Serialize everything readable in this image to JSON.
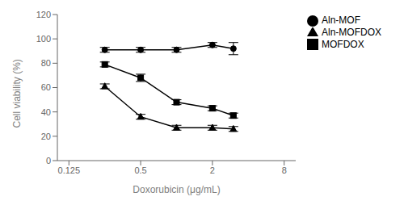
{
  "chart_data": {
    "type": "line",
    "x": [
      0.25,
      0.5,
      1.0,
      2.0,
      3.0
    ],
    "xlabel": "Doxorubicin (μg/mL)",
    "ylabel": "Cell viability (%)",
    "log": "x",
    "xlim": [
      0.1,
      10
    ],
    "xticks": [
      0.125,
      0.5,
      2,
      8
    ],
    "ylim": [
      0,
      120
    ],
    "yticks": [
      0,
      20,
      40,
      60,
      80,
      100,
      120
    ],
    "grid": false,
    "legend": "right",
    "series": [
      {
        "name": "Aln-MOF",
        "color": "black",
        "marker": "circle",
        "values": [
          91,
          91,
          91,
          95,
          92
        ],
        "errors": [
          2,
          2,
          2,
          2,
          5
        ]
      },
      {
        "name": "MOFDOX",
        "color": "black",
        "marker": "square",
        "values": [
          79,
          68,
          48,
          43,
          37
        ],
        "errors": [
          2,
          3,
          2,
          2,
          2
        ]
      },
      {
        "name": "Aln-MOFDOX",
        "color": "black",
        "marker": "triangle",
        "values": [
          61,
          36,
          27,
          27,
          26
        ],
        "errors": [
          2,
          2,
          2,
          2,
          2
        ]
      }
    ]
  }
}
